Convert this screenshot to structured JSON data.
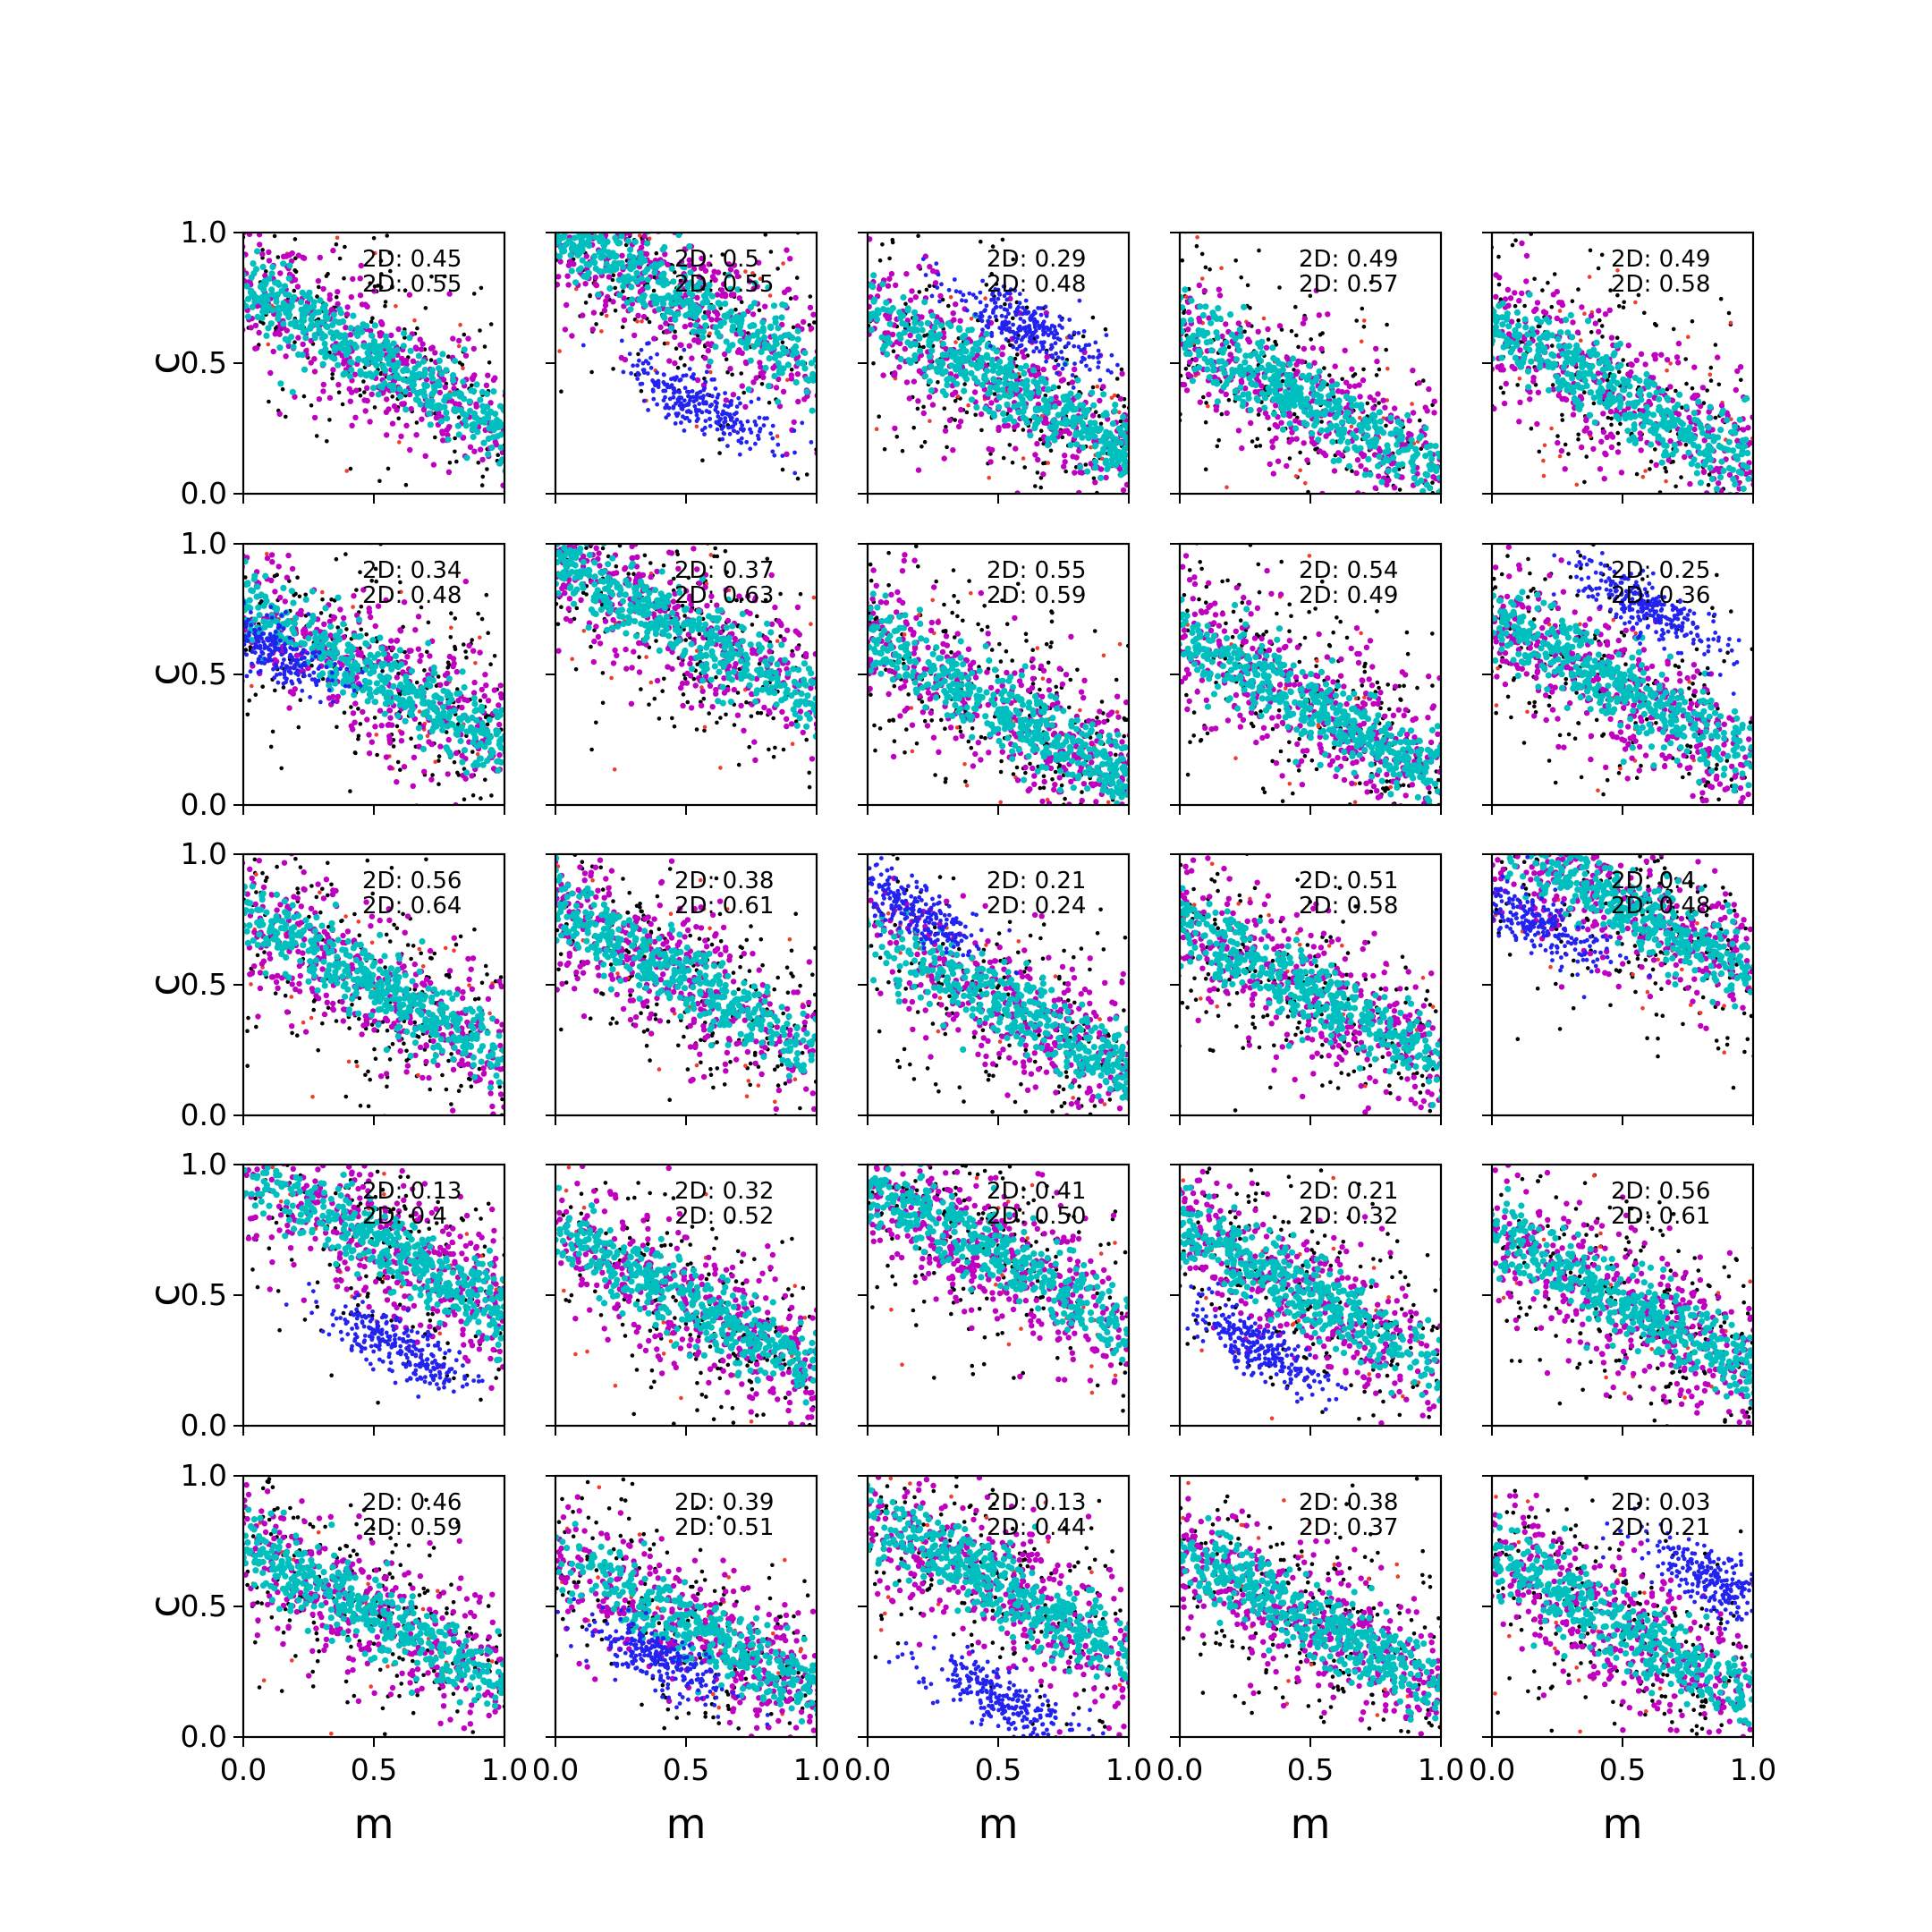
{
  "chart_data": {
    "type": "scatter",
    "layout": "5x5 grid of panels",
    "xlabel": "m",
    "ylabel": "c",
    "xlim": [
      0,
      1
    ],
    "ylim": [
      0,
      1
    ],
    "x_ticks": [
      "0.0",
      "0.5",
      "1.0"
    ],
    "y_ticks": [
      "0.0",
      "0.5",
      "1.0"
    ],
    "grid": false,
    "colors": {
      "black": "#000000",
      "red": "#f03c2d",
      "blue": "#2323f0",
      "magenta": "#c000c0",
      "cyan": "#00bfbf"
    },
    "series_description": "Each panel: black and red points (broad band), magenta band, cyan core; some panels include a blue cluster",
    "panels": [
      {
        "row": 0,
        "col": 0,
        "annotations": [
          "2D: 0.45",
          "2D: 0.55"
        ],
        "center": [
          0.45,
          0.55
        ],
        "blue_cluster": null
      },
      {
        "row": 0,
        "col": 1,
        "annotations": [
          "2D: 0.5",
          "2D: 0.55"
        ],
        "center": [
          0.3,
          0.85
        ],
        "blue_cluster": [
          0.55,
          0.35
        ]
      },
      {
        "row": 0,
        "col": 2,
        "annotations": [
          "2D: 0.29",
          "2D: 0.48"
        ],
        "center": [
          0.65,
          0.35
        ],
        "blue_cluster": [
          0.6,
          0.65
        ]
      },
      {
        "row": 0,
        "col": 3,
        "annotations": [
          "2D: 0.49",
          "2D: 0.57"
        ],
        "center": [
          0.4,
          0.4
        ],
        "blue_cluster": null
      },
      {
        "row": 0,
        "col": 4,
        "annotations": [
          "2D: 0.49",
          "2D: 0.58"
        ],
        "center": [
          0.45,
          0.4
        ],
        "blue_cluster": null
      },
      {
        "row": 1,
        "col": 0,
        "annotations": [
          "2D: 0.34",
          "2D: 0.48"
        ],
        "center": [
          0.6,
          0.45
        ],
        "blue_cluster": [
          0.1,
          0.6
        ]
      },
      {
        "row": 1,
        "col": 1,
        "annotations": [
          "2D: 0.37",
          "2D: 0.63"
        ],
        "center": [
          0.45,
          0.7
        ],
        "blue_cluster": null
      },
      {
        "row": 1,
        "col": 2,
        "annotations": [
          "2D: 0.55",
          "2D: 0.59"
        ],
        "center": [
          0.55,
          0.35
        ],
        "blue_cluster": null
      },
      {
        "row": 1,
        "col": 3,
        "annotations": [
          "2D: 0.54",
          "2D: 0.49"
        ],
        "center": [
          0.55,
          0.35
        ],
        "blue_cluster": null
      },
      {
        "row": 1,
        "col": 4,
        "annotations": [
          "2D: 0.25",
          "2D: 0.36"
        ],
        "center": [
          0.4,
          0.5
        ],
        "blue_cluster": [
          0.6,
          0.75
        ]
      },
      {
        "row": 2,
        "col": 0,
        "annotations": [
          "2D: 0.56",
          "2D: 0.64"
        ],
        "center": [
          0.5,
          0.5
        ],
        "blue_cluster": null
      },
      {
        "row": 2,
        "col": 1,
        "annotations": [
          "2D: 0.38",
          "2D: 0.61"
        ],
        "center": [
          0.35,
          0.6
        ],
        "blue_cluster": null
      },
      {
        "row": 2,
        "col": 2,
        "annotations": [
          "2D: 0.21",
          "2D: 0.24"
        ],
        "center": [
          0.75,
          0.3
        ],
        "blue_cluster": [
          0.15,
          0.8
        ]
      },
      {
        "row": 2,
        "col": 3,
        "annotations": [
          "2D: 0.51",
          "2D: 0.58"
        ],
        "center": [
          0.45,
          0.5
        ],
        "blue_cluster": null
      },
      {
        "row": 2,
        "col": 4,
        "annotations": [
          "2D: 0.4",
          "2D: 0.48"
        ],
        "center": [
          0.6,
          0.75
        ],
        "blue_cluster": [
          0.15,
          0.75
        ]
      },
      {
        "row": 3,
        "col": 0,
        "annotations": [
          "2D: 0.13",
          "2D: 0.4"
        ],
        "center": [
          0.7,
          0.6
        ],
        "blue_cluster": [
          0.6,
          0.3
        ]
      },
      {
        "row": 3,
        "col": 1,
        "annotations": [
          "2D: 0.32",
          "2D: 0.52"
        ],
        "center": [
          0.55,
          0.45
        ],
        "blue_cluster": null
      },
      {
        "row": 3,
        "col": 2,
        "annotations": [
          "2D: 0.41",
          "2D: 0.50"
        ],
        "center": [
          0.4,
          0.7
        ],
        "blue_cluster": null
      },
      {
        "row": 3,
        "col": 3,
        "annotations": [
          "2D: 0.21",
          "2D: 0.32"
        ],
        "center": [
          0.4,
          0.55
        ],
        "blue_cluster": [
          0.3,
          0.3
        ]
      },
      {
        "row": 3,
        "col": 4,
        "annotations": [
          "2D: 0.56",
          "2D: 0.61"
        ],
        "center": [
          0.55,
          0.45
        ],
        "blue_cluster": null
      },
      {
        "row": 4,
        "col": 0,
        "annotations": [
          "2D: 0.46",
          "2D: 0.59"
        ],
        "center": [
          0.35,
          0.55
        ],
        "blue_cluster": null
      },
      {
        "row": 4,
        "col": 1,
        "annotations": [
          "2D: 0.39",
          "2D: 0.51"
        ],
        "center": [
          0.75,
          0.3
        ],
        "blue_cluster": [
          0.4,
          0.3
        ]
      },
      {
        "row": 4,
        "col": 2,
        "annotations": [
          "2D: 0.13",
          "2D: 0.44"
        ],
        "center": [
          0.55,
          0.55
        ],
        "blue_cluster": [
          0.5,
          0.15
        ]
      },
      {
        "row": 4,
        "col": 3,
        "annotations": [
          "2D: 0.38",
          "2D: 0.37"
        ],
        "center": [
          0.5,
          0.45
        ],
        "blue_cluster": null
      },
      {
        "row": 4,
        "col": 4,
        "annotations": [
          "2D: 0.03",
          "2D: 0.21"
        ],
        "center": [
          0.45,
          0.45
        ],
        "blue_cluster": [
          0.85,
          0.6
        ]
      }
    ]
  }
}
